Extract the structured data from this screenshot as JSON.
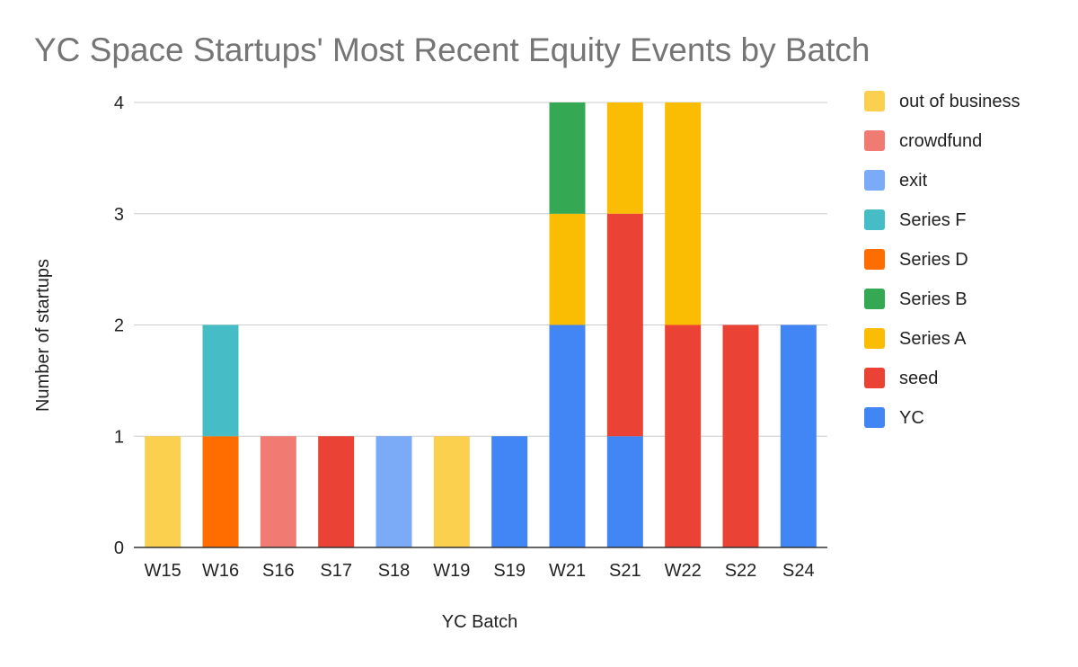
{
  "chart_data": {
    "type": "bar",
    "stacked": true,
    "title": "YC Space Startups' Most Recent Equity Events by Batch",
    "xlabel": "YC Batch",
    "ylabel": "Number of startups",
    "ylim": [
      0,
      4
    ],
    "yticks": [
      "0",
      "1",
      "2",
      "3",
      "4"
    ],
    "grid": true,
    "legend_position": "right",
    "categories": [
      "W15",
      "W16",
      "S16",
      "S17",
      "S18",
      "W19",
      "S19",
      "W21",
      "S21",
      "W22",
      "S22",
      "S24"
    ],
    "series": [
      {
        "name": "YC",
        "color": "#4285F4",
        "values": [
          0,
          0,
          0,
          0,
          0,
          0,
          1,
          2,
          1,
          0,
          0,
          2
        ]
      },
      {
        "name": "seed",
        "color": "#EA4335",
        "values": [
          0,
          0,
          0,
          1,
          0,
          0,
          0,
          0,
          2,
          2,
          2,
          0
        ]
      },
      {
        "name": "Series A",
        "color": "#FBBC04",
        "values": [
          0,
          0,
          0,
          0,
          0,
          0,
          0,
          1,
          1,
          2,
          0,
          0
        ]
      },
      {
        "name": "Series B",
        "color": "#34A853",
        "values": [
          0,
          0,
          0,
          0,
          0,
          0,
          0,
          1,
          0,
          0,
          0,
          0
        ]
      },
      {
        "name": "Series D",
        "color": "#FF6D01",
        "values": [
          0,
          1,
          0,
          0,
          0,
          0,
          0,
          0,
          0,
          0,
          0,
          0
        ]
      },
      {
        "name": "Series F",
        "color": "#46BDC6",
        "values": [
          0,
          1,
          0,
          0,
          0,
          0,
          0,
          0,
          0,
          0,
          0,
          0
        ]
      },
      {
        "name": "exit",
        "color": "#7BAAF7",
        "values": [
          0,
          0,
          0,
          0,
          1,
          0,
          0,
          0,
          0,
          0,
          0,
          0
        ]
      },
      {
        "name": "crowdfund",
        "color": "#F07B72",
        "values": [
          0,
          0,
          1,
          0,
          0,
          0,
          0,
          0,
          0,
          0,
          0,
          0
        ]
      },
      {
        "name": "out of business",
        "color": "#FCD04F",
        "values": [
          1,
          0,
          0,
          0,
          0,
          1,
          0,
          0,
          0,
          0,
          0,
          0
        ]
      }
    ],
    "legend_order": [
      "out of business",
      "crowdfund",
      "exit",
      "Series F",
      "Series D",
      "Series B",
      "Series A",
      "seed",
      "YC"
    ]
  }
}
